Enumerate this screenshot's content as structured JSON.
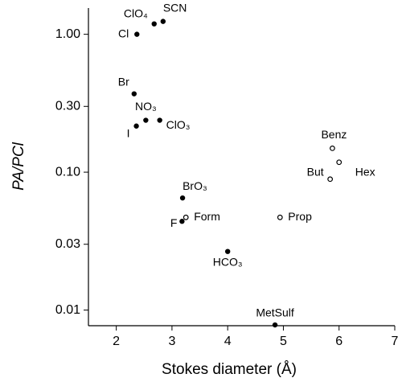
{
  "chart_data": {
    "type": "scatter",
    "xlabel": "Stokes diameter (Å)",
    "ylabel": "PA/PCl",
    "xlim": [
      1.5,
      7
    ],
    "xticks": [
      2,
      3,
      4,
      5,
      6,
      7
    ],
    "ylim": [
      0.0077,
      1.55
    ],
    "log_y": true,
    "yticks": [
      {
        "value": 1,
        "label": "1.00"
      },
      {
        "value": 0.3,
        "label": "0.30"
      },
      {
        "value": 0.1,
        "label": "0.10"
      },
      0.03,
      0.01
    ],
    "color": "#000000",
    "series": [
      {
        "marker": "filled",
        "labels": [
          "Cl",
          "ClO₄",
          "SCN",
          "Br",
          "NO₃",
          "ClO₃",
          "I",
          "BrO₃",
          "F",
          "HCO₃",
          "MetSulf"
        ],
        "x": [
          2.37,
          2.68,
          2.84,
          2.32,
          2.53,
          2.78,
          2.36,
          3.19,
          3.18,
          4.0,
          4.85
        ],
        "values": [
          1.0,
          1.19,
          1.24,
          0.37,
          0.238,
          0.238,
          0.216,
          0.065,
          0.044,
          0.0266,
          0.0078
        ]
      },
      {
        "marker": "open",
        "labels": [
          "Form",
          "Benz",
          "Hex",
          "But",
          "Prop"
        ],
        "x": [
          3.25,
          5.88,
          6.0,
          5.84,
          4.94
        ],
        "values": [
          0.047,
          0.149,
          0.118,
          0.089,
          0.047
        ]
      }
    ]
  }
}
